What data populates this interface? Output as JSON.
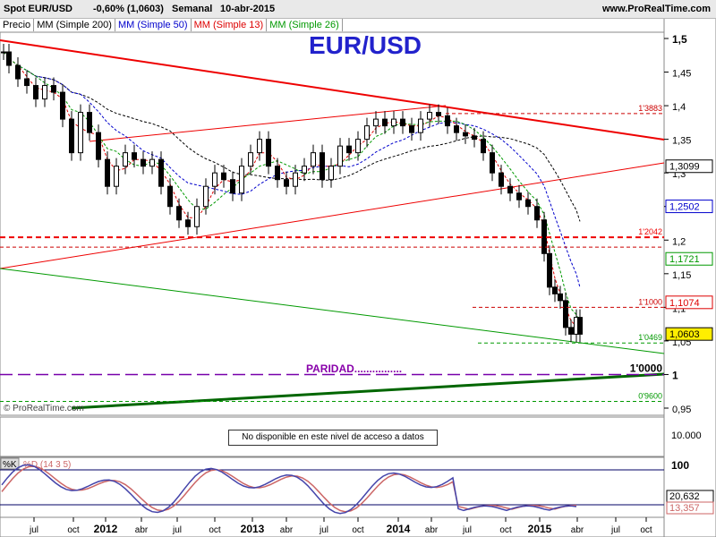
{
  "header": {
    "instrument": "Spot EUR/USD",
    "change": "-0,60% (1,0603)",
    "period": "Semanal",
    "date": "10-abr-2015",
    "site": "www.ProRealTime.com"
  },
  "legend": {
    "price": "Precio",
    "ma200": "MM (Simple 200)",
    "ma50": "MM (Simple 50)",
    "ma13": "MM (Simple 13)",
    "ma26": "MM (Simple 26)"
  },
  "watermark": "© ProRealTime.com",
  "na_text": "No disponible en este nivel de acceso a datos",
  "colors": {
    "ma200": "#000000",
    "ma50": "#0000cc",
    "ma13": "#dd0000",
    "ma26": "#009900",
    "candle_up": "#ffffff",
    "candle_down": "#000000",
    "title": "#2222cc",
    "paridad": "#8800aa"
  },
  "chart_data": [
    {
      "type": "candlestick",
      "title": "EUR/USD",
      "x_ticks": [
        "jul",
        "oct",
        "2012",
        "abr",
        "jul",
        "oct",
        "2013",
        "abr",
        "jul",
        "oct",
        "2014",
        "abr",
        "jul",
        "oct",
        "2015",
        "abr",
        "jul",
        "oct"
      ],
      "y_ticks": [
        "1,5",
        "1,45",
        "1,4",
        "1,35",
        "1,3",
        "1,25",
        "1,2",
        "1,15",
        "1,1",
        "1,05",
        "1",
        "0,95"
      ],
      "ylim": [
        0.93,
        1.52
      ],
      "last_price": "1,0603",
      "moving_averages": [
        {
          "name": "MM (Simple 200)",
          "last": null
        },
        {
          "name": "MM (Simple 50)",
          "last": "1,2502"
        },
        {
          "name": "MM (Simple 13)",
          "last": "1,1074"
        },
        {
          "name": "MM (Simple 26)",
          "last": "1,1721"
        }
      ],
      "axis_badges": [
        {
          "label": "1,3099",
          "color": "#000000",
          "y": 1.3099
        },
        {
          "label": "1,2502",
          "color": "#0000cc",
          "y": 1.2502
        },
        {
          "label": "1,1721",
          "color": "#009900",
          "y": 1.1721
        },
        {
          "label": "1,1074",
          "color": "#dd0000",
          "y": 1.1074
        },
        {
          "label": "1,0603",
          "color": "#000000",
          "y": 1.0603,
          "highlight": true
        }
      ],
      "levels": [
        {
          "label": "1'3883",
          "y": 1.3883,
          "style": "dash",
          "color": "#cc0000"
        },
        {
          "label": "1'2042",
          "y": 1.2042,
          "style": "bold-dash",
          "color": "#ee0000"
        },
        {
          "label": "",
          "y": 1.1895,
          "style": "dash",
          "color": "#cc0000"
        },
        {
          "label": "1'1000",
          "y": 1.1,
          "style": "dash",
          "color": "#cc0000"
        },
        {
          "label": "1'0469",
          "y": 1.0469,
          "style": "dash",
          "color": "#009900"
        },
        {
          "label": "1'0000",
          "y": 1.0,
          "style": "longdash",
          "color": "#7700aa"
        },
        {
          "label": "0'9600",
          "y": 0.96,
          "style": "dash",
          "color": "#009900"
        }
      ],
      "annotation": "PARIDAD................"
    },
    {
      "type": "line",
      "title": "%K %D (14 3 5)",
      "series": [
        {
          "name": "%K"
        },
        {
          "name": "%D (14 3 5)"
        }
      ],
      "y_ticks": [
        "100"
      ],
      "ylim": [
        0,
        100
      ],
      "levels": [
        80,
        20
      ],
      "badges": [
        "20,632",
        "13,357"
      ]
    },
    {
      "type": "panel",
      "y_ticks": [
        "10.000"
      ],
      "message": "No disponible en este nivel de acceso a datos"
    }
  ]
}
